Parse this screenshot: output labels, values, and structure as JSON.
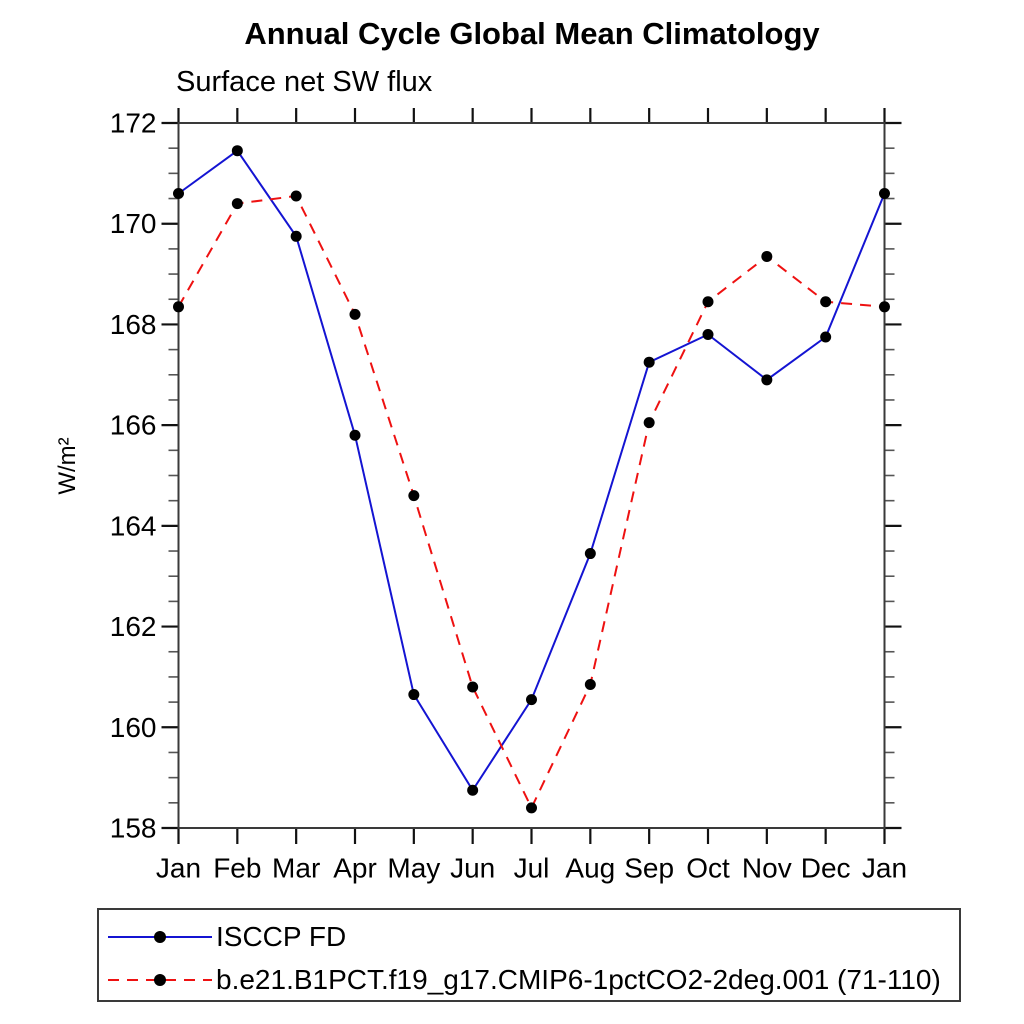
{
  "chart_data": {
    "type": "line",
    "title": "Annual Cycle Global Mean Climatology",
    "subtitle": "Surface net SW flux",
    "ylabel": "W/m²",
    "xlabel": "",
    "x_tick_labels": [
      "Jan",
      "Feb",
      "Mar",
      "Apr",
      "May",
      "Jun",
      "Jul",
      "Aug",
      "Sep",
      "Oct",
      "Nov",
      "Dec",
      "Jan"
    ],
    "y_tick_labels": [
      "158",
      "160",
      "162",
      "164",
      "166",
      "168",
      "170",
      "172"
    ],
    "ylim": [
      158,
      172
    ],
    "y_major_step": 2,
    "y_minor_step": 0.5,
    "grid": false,
    "legend_position": "bottom",
    "marker": "filled-circle",
    "marker_color": "#000000",
    "frame_color": "#3a3a3a",
    "series": [
      {
        "name": "ISCCP FD",
        "color": "#1414d2",
        "style": "solid",
        "values": [
          170.6,
          171.45,
          169.75,
          165.8,
          160.65,
          158.75,
          160.55,
          163.45,
          167.25,
          167.8,
          166.9,
          167.75,
          170.6
        ]
      },
      {
        "name": "b.e21.B1PCT.f19_g17.CMIP6-1pctCO2-2deg.001 (71-110)",
        "color": "#ee1111",
        "style": "dashed",
        "values": [
          168.35,
          170.4,
          170.55,
          168.2,
          164.6,
          160.8,
          158.4,
          160.85,
          166.05,
          168.45,
          169.35,
          168.45,
          168.35
        ]
      }
    ]
  }
}
